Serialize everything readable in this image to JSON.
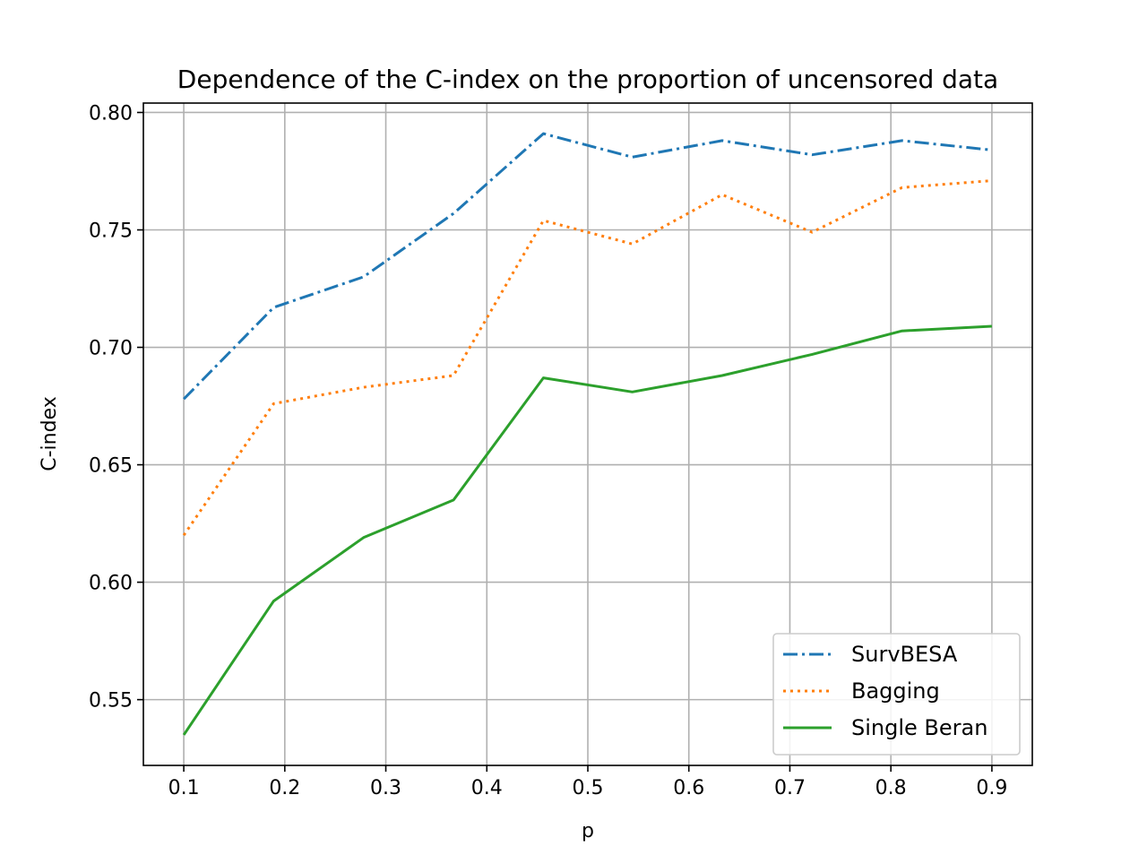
{
  "chart_data": {
    "type": "line",
    "title": "Dependence of the C-index on the proportion of uncensored data",
    "xlabel": "p",
    "ylabel": "C-index",
    "x": [
      0.1,
      0.189,
      0.278,
      0.367,
      0.456,
      0.544,
      0.633,
      0.722,
      0.811,
      0.9
    ],
    "xlim": [
      0.06,
      0.94
    ],
    "ylim": [
      0.522,
      0.804
    ],
    "xticks": [
      0.1,
      0.2,
      0.3,
      0.4,
      0.5,
      0.6,
      0.7,
      0.8,
      0.9
    ],
    "xtick_labels": [
      "0.1",
      "0.2",
      "0.3",
      "0.4",
      "0.5",
      "0.6",
      "0.7",
      "0.8",
      "0.9"
    ],
    "yticks": [
      0.55,
      0.6,
      0.65,
      0.7,
      0.75,
      0.8
    ],
    "ytick_labels": [
      "0.55",
      "0.60",
      "0.65",
      "0.70",
      "0.75",
      "0.80"
    ],
    "grid": true,
    "legend_position": "lower-right",
    "series": [
      {
        "name": "SurvBESA",
        "color": "#1f77b4",
        "style": "dashdot",
        "values": [
          0.678,
          0.717,
          0.73,
          0.757,
          0.791,
          0.781,
          0.788,
          0.782,
          0.788,
          0.784
        ]
      },
      {
        "name": "Bagging",
        "color": "#ff7f0e",
        "style": "dotted",
        "values": [
          0.62,
          0.676,
          0.683,
          0.688,
          0.754,
          0.744,
          0.765,
          0.749,
          0.768,
          0.771
        ]
      },
      {
        "name": "Single Beran",
        "color": "#2ca02c",
        "style": "solid",
        "values": [
          0.535,
          0.592,
          0.619,
          0.635,
          0.687,
          0.681,
          0.688,
          0.697,
          0.707,
          0.709
        ]
      }
    ]
  }
}
